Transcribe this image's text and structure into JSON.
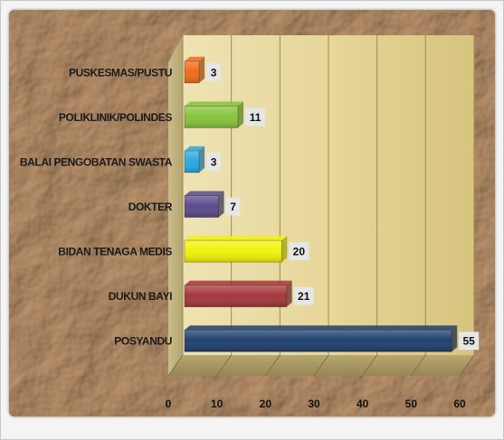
{
  "chart_data": {
    "type": "bar",
    "orientation": "horizontal",
    "categories": [
      "PUSKESMAS/PUSTU",
      "POLIKLINIK/POLINDES",
      "BALAI PENGOBATAN SWASTA",
      "DOKTER",
      "BIDAN TENAGA MEDIS",
      "DUKUN BAYI",
      "POSYANDU"
    ],
    "values": [
      3,
      11,
      3,
      7,
      20,
      21,
      55
    ],
    "colors": [
      "#ef6a1a",
      "#86c43a",
      "#29a8e0",
      "#5b4a8c",
      "#f2f20a",
      "#a4363a",
      "#1f3f6e"
    ],
    "xlim": [
      0,
      60
    ],
    "xticks": [
      0,
      10,
      20,
      30,
      40,
      50,
      60
    ],
    "grid": true,
    "legend": "none",
    "title": "",
    "xlabel": "",
    "ylabel": ""
  }
}
